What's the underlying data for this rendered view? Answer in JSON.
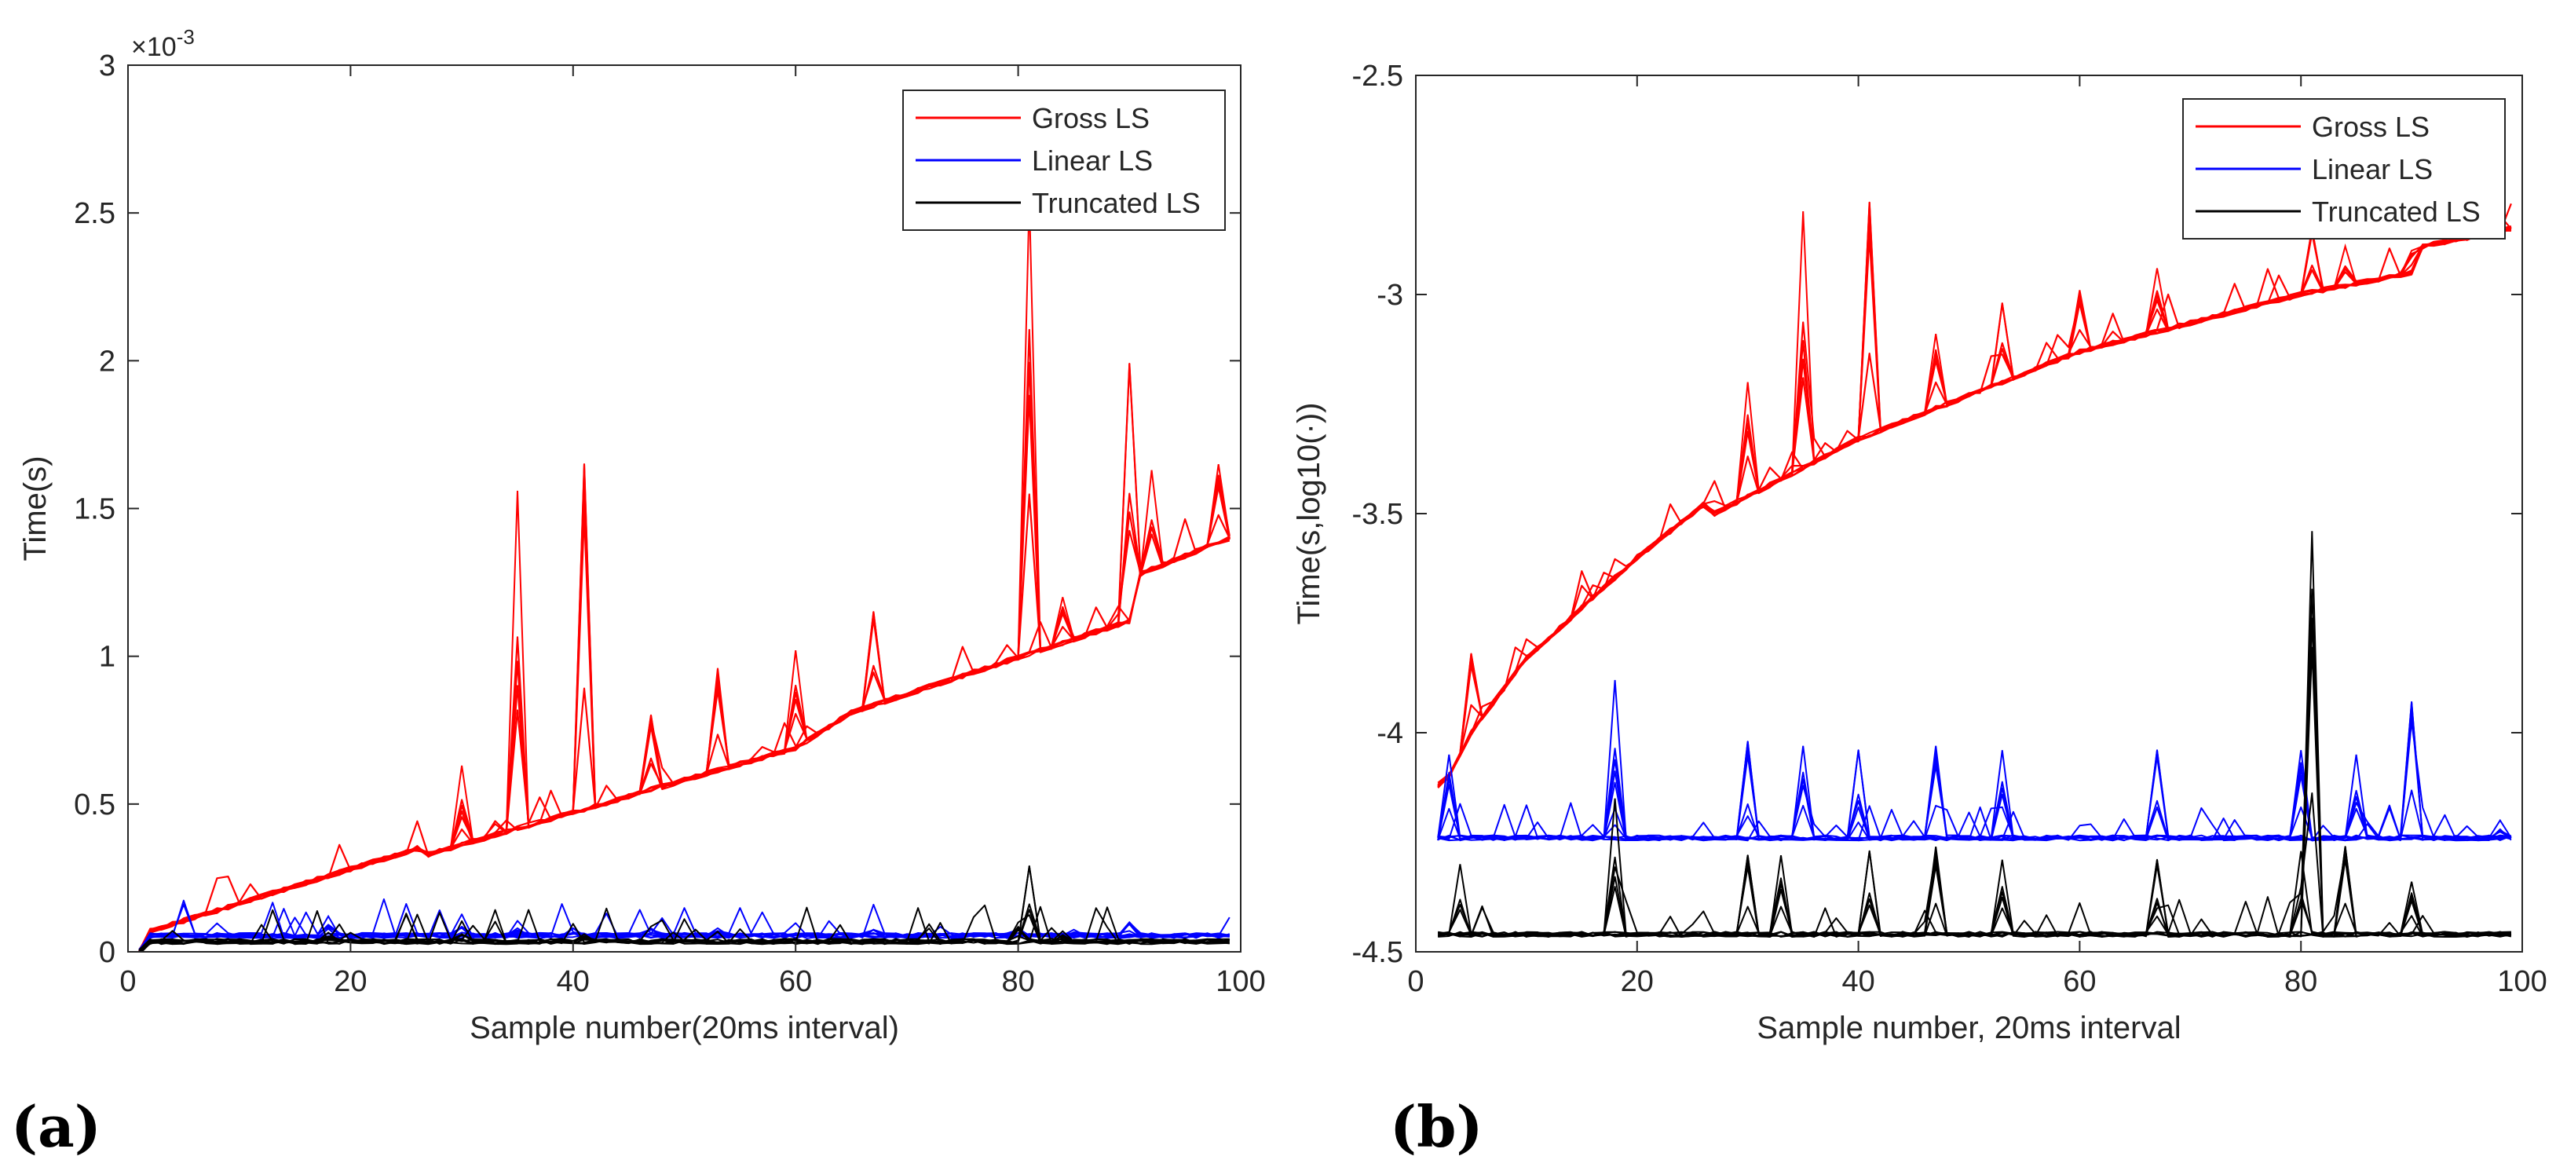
{
  "chart_data": [
    {
      "type": "line",
      "panel_label": "(a)",
      "xlabel": "Sample number(20ms interval)",
      "ylabel": "Time(s)",
      "exponent_label": "×10",
      "exponent_power": "-3",
      "xlim": [
        0,
        100
      ],
      "ylim": [
        0,
        3
      ],
      "xticks": [
        0,
        20,
        40,
        60,
        80,
        100
      ],
      "xtick_labels": [
        "0",
        "20",
        "40",
        "60",
        "80",
        "100"
      ],
      "yticks": [
        0,
        0.5,
        1,
        1.5,
        2,
        2.5,
        3
      ],
      "ytick_labels": [
        "0",
        "0.5",
        "1",
        "1.5",
        "2",
        "2.5",
        "3"
      ],
      "legend_position": "top-right",
      "legend": [
        {
          "name": "Gross LS",
          "color": "#ff0000"
        },
        {
          "name": "Linear LS",
          "color": "#0000ff"
        },
        {
          "name": "Truncated LS",
          "color": "#000000"
        }
      ],
      "series": [
        {
          "name": "Gross LS",
          "color": "#ff0000",
          "n_runs": 10,
          "base": {
            "x": [
              1,
              2,
              26,
              27,
              60,
              65,
              90,
              91,
              99
            ],
            "y": [
              0.0,
              0.07,
              0.35,
              0.33,
              0.69,
              0.81,
              1.12,
              1.28,
              1.4
            ]
          },
          "spikes": [
            {
              "x": 35,
              "y": 1.56
            },
            {
              "x": 41,
              "y": 1.65
            },
            {
              "x": 81,
              "y": 2.55
            },
            {
              "x": 90,
              "y": 1.99
            },
            {
              "x": 53,
              "y": 0.96
            },
            {
              "x": 60,
              "y": 1.02
            },
            {
              "x": 67,
              "y": 1.15
            },
            {
              "x": 98,
              "y": 1.65
            },
            {
              "x": 30,
              "y": 0.63
            },
            {
              "x": 47,
              "y": 0.8
            },
            {
              "x": 84,
              "y": 1.2
            },
            {
              "x": 92,
              "y": 1.63
            }
          ]
        },
        {
          "name": "Linear LS",
          "color": "#0000ff",
          "n_runs": 10,
          "base": {
            "x": [
              1,
              2,
              99
            ],
            "y": [
              0.0,
              0.055,
              0.055
            ]
          },
          "spikes": [
            {
              "x": 18,
              "y": 0.12
            },
            {
              "x": 30,
              "y": 0.085
            },
            {
              "x": 35,
              "y": 0.08
            },
            {
              "x": 40,
              "y": 0.08
            },
            {
              "x": 47,
              "y": 0.08
            },
            {
              "x": 53,
              "y": 0.08
            },
            {
              "x": 67,
              "y": 0.075
            },
            {
              "x": 80,
              "y": 0.08
            },
            {
              "x": 85,
              "y": 0.075
            },
            {
              "x": 90,
              "y": 0.1
            }
          ]
        },
        {
          "name": "Truncated LS",
          "color": "#000000",
          "n_runs": 10,
          "base": {
            "x": [
              1,
              2,
              99
            ],
            "y": [
              0.0,
              0.035,
              0.035
            ]
          },
          "spikes": [
            {
              "x": 18,
              "y": 0.065
            },
            {
              "x": 30,
              "y": 0.06
            },
            {
              "x": 41,
              "y": 0.06
            },
            {
              "x": 81,
              "y": 0.29
            },
            {
              "x": 80,
              "y": 0.085
            },
            {
              "x": 84,
              "y": 0.07
            }
          ]
        }
      ]
    },
    {
      "type": "line",
      "panel_label": "(b)",
      "xlabel": "Sample number, 20ms interval",
      "ylabel": "Time(s,log10(·))",
      "xlim": [
        0,
        100
      ],
      "ylim": [
        -4.5,
        -2.5
      ],
      "xticks": [
        0,
        20,
        40,
        60,
        80,
        100
      ],
      "xtick_labels": [
        "0",
        "20",
        "40",
        "60",
        "80",
        "100"
      ],
      "yticks": [
        -4.5,
        -4,
        -3.5,
        -3,
        -2.5
      ],
      "ytick_labels": [
        "-4.5",
        "-4",
        "-3.5",
        "-3",
        "-2.5"
      ],
      "legend_position": "top-right",
      "legend": [
        {
          "name": "Gross LS",
          "color": "#ff0000"
        },
        {
          "name": "Linear LS",
          "color": "#0000ff"
        },
        {
          "name": "Truncated LS",
          "color": "#000000"
        }
      ],
      "series": [
        {
          "name": "Gross LS",
          "color": "#ff0000",
          "n_runs": 10,
          "base": {
            "x": [
              2,
              3,
              5,
              10,
              20,
              26,
              27,
              40,
              60,
              80,
              90,
              91,
              99
            ],
            "y": [
              -4.12,
              -4.1,
              -4.0,
              -3.83,
              -3.6,
              -3.48,
              -3.5,
              -3.33,
              -3.13,
              -3.0,
              -2.95,
              -2.89,
              -2.85
            ]
          },
          "spikes": [
            {
              "x": 35,
              "y": -2.81
            },
            {
              "x": 41,
              "y": -2.79
            },
            {
              "x": 30,
              "y": -3.2
            },
            {
              "x": 53,
              "y": -3.02
            },
            {
              "x": 60,
              "y": -2.99
            },
            {
              "x": 67,
              "y": -2.94
            },
            {
              "x": 81,
              "y": -2.85
            },
            {
              "x": 90,
              "y": -2.9
            },
            {
              "x": 98,
              "y": -2.86
            },
            {
              "x": 5,
              "y": -3.82
            },
            {
              "x": 47,
              "y": -3.09
            },
            {
              "x": 84,
              "y": -2.89
            }
          ]
        },
        {
          "name": "Linear LS",
          "color": "#0000ff",
          "n_runs": 10,
          "base": {
            "x": [
              2,
              99
            ],
            "y": [
              -4.24,
              -4.24
            ]
          },
          "spikes": [
            {
              "x": 18,
              "y": -3.88
            },
            {
              "x": 30,
              "y": -4.02
            },
            {
              "x": 35,
              "y": -4.03
            },
            {
              "x": 40,
              "y": -4.04
            },
            {
              "x": 47,
              "y": -4.03
            },
            {
              "x": 53,
              "y": -4.04
            },
            {
              "x": 67,
              "y": -4.04
            },
            {
              "x": 80,
              "y": -4.04
            },
            {
              "x": 85,
              "y": -4.05
            },
            {
              "x": 90,
              "y": -3.93
            },
            {
              "x": 3,
              "y": -4.05
            },
            {
              "x": 98,
              "y": -4.2
            }
          ]
        },
        {
          "name": "Truncated LS",
          "color": "#000000",
          "n_runs": 10,
          "base": {
            "x": [
              2,
              99
            ],
            "y": [
              -4.46,
              -4.46
            ]
          },
          "spikes": [
            {
              "x": 18,
              "y": -4.15
            },
            {
              "x": 30,
              "y": -4.28
            },
            {
              "x": 33,
              "y": -4.28
            },
            {
              "x": 41,
              "y": -4.27
            },
            {
              "x": 47,
              "y": -4.26
            },
            {
              "x": 53,
              "y": -4.29
            },
            {
              "x": 67,
              "y": -4.29
            },
            {
              "x": 81,
              "y": -3.54
            },
            {
              "x": 80,
              "y": -4.27
            },
            {
              "x": 84,
              "y": -4.26
            },
            {
              "x": 90,
              "y": -4.34
            },
            {
              "x": 4,
              "y": -4.3
            }
          ]
        }
      ]
    }
  ]
}
